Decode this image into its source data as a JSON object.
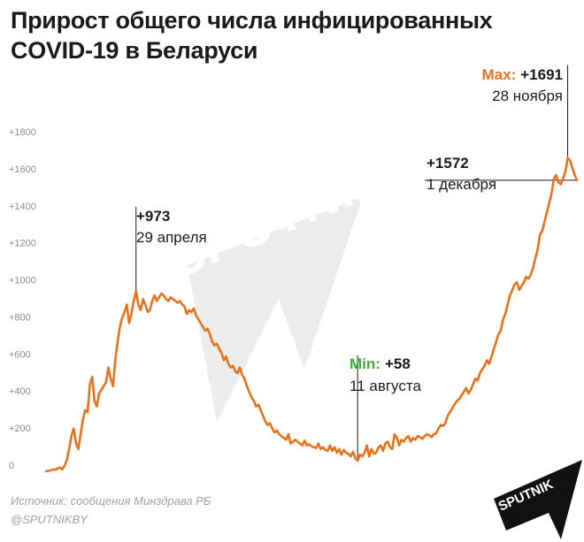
{
  "title": "Прирост общего числа инфицированных COVID-19 в Беларуси",
  "source": "Источник: сообщения Минздрава РБ",
  "handle": "@SPUTNIKBY",
  "watermark": "SPUTNIK",
  "logo_text": "SPUTNIK",
  "colors": {
    "line": "#e8721c",
    "min_label": "#3aaa35",
    "max_label": "#e8721c",
    "text": "#1a1a1a",
    "tick": "#8a8a8a"
  },
  "chart_data": {
    "type": "line",
    "title": "Прирост общего числа инфицированных COVID-19 в Беларуси",
    "xlabel": "",
    "ylabel": "",
    "ylim": [
      0,
      1900
    ],
    "y_ticks": [
      0,
      200,
      400,
      600,
      800,
      1000,
      1200,
      1400,
      1600,
      1800
    ],
    "y_tick_labels": [
      "0",
      "+200",
      "+400",
      "+600",
      "+800",
      "+1000",
      "+1200",
      "+1400",
      "+1600",
      "+1800"
    ],
    "grid": false,
    "legend": "none",
    "annotations": [
      {
        "key": "april",
        "value_text": "+973",
        "date_text": "29 апреля",
        "value": 973
      },
      {
        "key": "min",
        "prefix": "Min:",
        "value_text": "+58",
        "date_text": "11 августа",
        "value": 58
      },
      {
        "key": "max",
        "prefix": "Max:",
        "value_text": "+1691",
        "date_text": "28 ноября",
        "value": 1691
      },
      {
        "key": "last",
        "value_text": "+1572",
        "date_text": "1 декабря",
        "value": 1572
      }
    ],
    "series": [
      {
        "values": [
          0,
          2,
          5,
          10,
          8,
          15,
          20,
          10,
          30,
          60,
          120,
          190,
          230,
          150,
          120,
          200,
          280,
          330,
          320,
          470,
          510,
          380,
          350,
          420,
          440,
          460,
          480,
          560,
          500,
          460,
          600,
          700,
          780,
          830,
          860,
          900,
          800,
          850,
          920,
          973,
          900,
          870,
          930,
          900,
          860,
          870,
          920,
          950,
          920,
          940,
          960,
          950,
          930,
          920,
          940,
          930,
          920,
          910,
          920,
          900,
          890,
          850,
          870,
          860,
          880,
          840,
          820,
          800,
          780,
          760,
          770,
          740,
          700,
          680,
          690,
          660,
          640,
          600,
          620,
          580,
          560,
          570,
          540,
          530,
          560,
          520,
          500,
          460,
          430,
          400,
          380,
          350,
          360,
          330,
          300,
          270,
          250,
          260,
          230,
          210,
          220,
          200,
          190,
          180,
          170,
          200,
          150,
          160,
          170,
          160,
          150,
          140,
          165,
          140,
          145,
          135,
          130,
          125,
          150,
          120,
          130,
          115,
          110,
          140,
          110,
          130,
          100,
          120,
          90,
          115,
          100,
          95,
          80,
          105,
          70,
          58,
          90,
          80,
          100,
          140,
          80,
          120,
          95,
          100,
          130,
          140,
          110,
          150,
          160,
          130,
          120,
          200,
          180,
          140,
          170,
          160,
          180,
          190,
          160,
          180,
          170,
          190,
          185,
          175,
          190,
          200,
          195,
          185,
          200,
          205,
          230,
          250,
          245,
          260,
          300,
          320,
          340,
          360,
          380,
          390,
          410,
          430,
          450,
          420,
          440,
          470,
          500,
          490,
          530,
          550,
          570,
          600,
          580,
          620,
          660,
          700,
          740,
          760,
          820,
          850,
          900,
          950,
          980,
          1010,
          1020,
          980,
          1000,
          1020,
          1050,
          1040,
          1060,
          1100,
          1150,
          1200,
          1280,
          1300,
          1350,
          1400,
          1450,
          1500,
          1580,
          1600,
          1560,
          1550,
          1580,
          1620,
          1691,
          1680,
          1640,
          1600,
          1572
        ]
      }
    ]
  }
}
